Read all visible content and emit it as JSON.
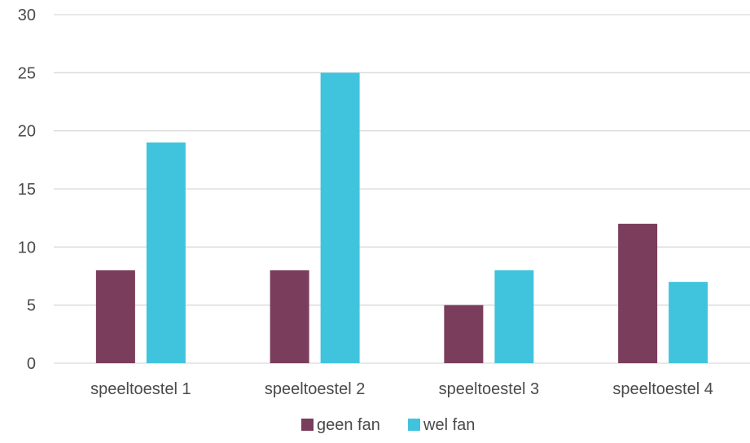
{
  "chart_data": {
    "type": "bar",
    "categories": [
      "speeltoestel 1",
      "speeltoestel 2",
      "speeltoestel 3",
      "speeltoestel 4"
    ],
    "series": [
      {
        "name": "geen fan",
        "values": [
          8,
          8,
          5,
          12
        ],
        "color": "#7a3d5c"
      },
      {
        "name": "wel fan",
        "values": [
          19,
          25,
          8,
          7
        ],
        "color": "#40c4dd"
      }
    ],
    "ylim": [
      0,
      30
    ],
    "yticks": [
      0,
      5,
      10,
      15,
      20,
      25,
      30
    ],
    "grid": true,
    "legend_position": "bottom"
  }
}
